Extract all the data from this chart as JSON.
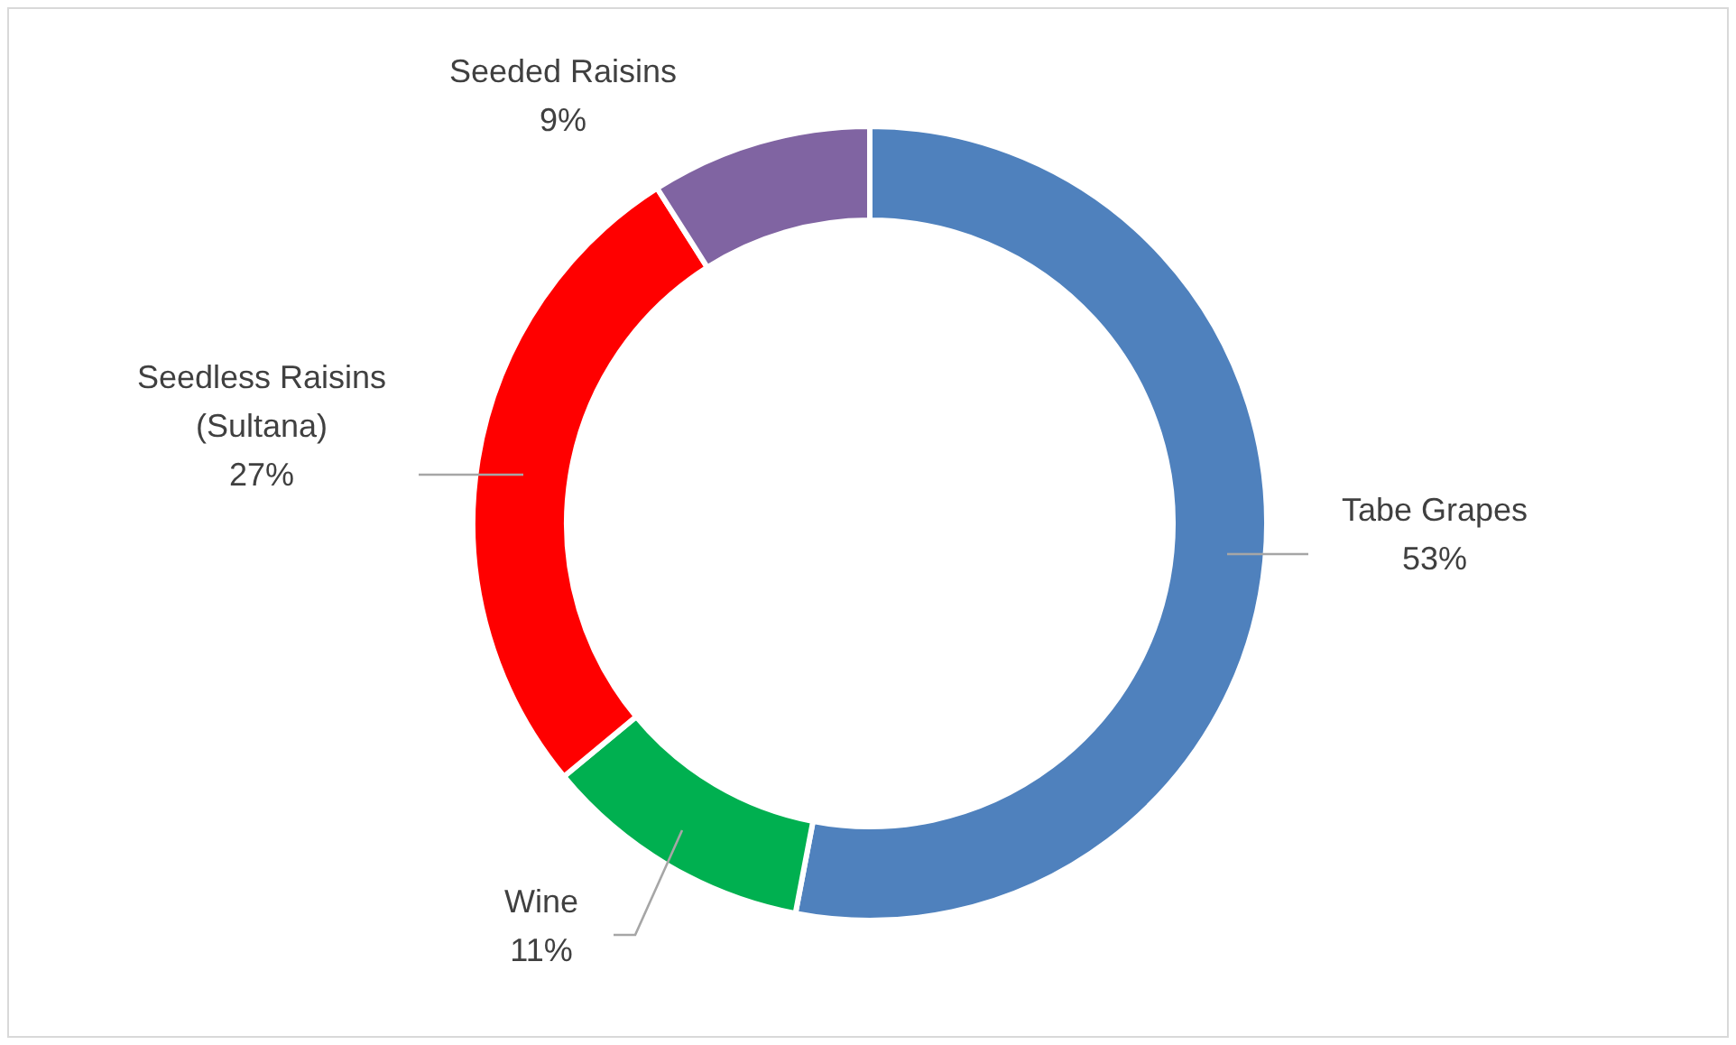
{
  "chart_data": {
    "type": "donut",
    "categories": [
      "Tabe Grapes",
      "Wine",
      "Seedless Raisins (Sultana)",
      "Seeded Raisins"
    ],
    "values": [
      53,
      11,
      27,
      9
    ],
    "colors": [
      "#4f81bd",
      "#00b050",
      "#ff0000",
      "#8064a2"
    ],
    "value_labels": [
      "53%",
      "11%",
      "27%",
      "9%"
    ]
  }
}
